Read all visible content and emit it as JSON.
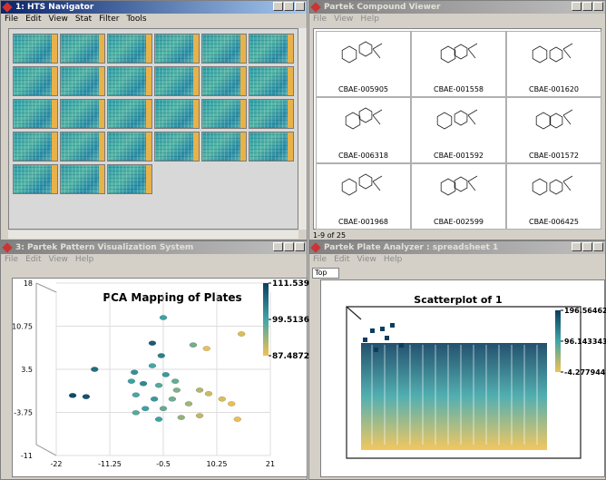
{
  "windows": [
    {
      "title": "1: HTS Navigator",
      "menu": [
        "File",
        "Edit",
        "View",
        "Stat",
        "Filter",
        "Tools"
      ]
    },
    {
      "title": "Partek Compound Viewer",
      "menu": [
        "File",
        "View",
        "Help"
      ],
      "compounds": [
        "CBAE-005905",
        "CBAE-001558",
        "CBAE-001620",
        "CBAE-006318",
        "CBAE-001592",
        "CBAE-001572",
        "CBAE-001968",
        "CBAE-002599",
        "CBAE-006425"
      ],
      "status": "1-9 of 25"
    },
    {
      "title": "3: Partek Pattern Visualization System",
      "menu": [
        "File",
        "Edit",
        "View",
        "Help"
      ]
    },
    {
      "title": "Partek Plate Analyzer : spreadsheet 1",
      "menu": [
        "File",
        "Edit",
        "View",
        "Help"
      ],
      "view": "Top"
    }
  ],
  "chart_data": [
    {
      "type": "scatter",
      "title": "PCA Mapping of Plates",
      "x": [
        -0.5,
        15.2,
        -2.7,
        5.5,
        8.2,
        -0.9,
        -14.3,
        -6.3,
        -2.7,
        0.0,
        1.9,
        -6.9,
        -4.5,
        -1.4,
        2.2,
        6.8,
        -6.0,
        -2.3,
        1.3,
        8.6,
        11.3,
        -18.7,
        -16.0,
        -4.1,
        -0.5,
        -6.0,
        -1.4,
        3.1,
        6.8,
        13.2,
        14.4,
        4.6
      ],
      "y": [
        12.2,
        9.45,
        7.9,
        7.6,
        7.0,
        5.8,
        3.5,
        3.0,
        4.1,
        2.6,
        1.5,
        1.5,
        1.1,
        0.8,
        0.0,
        0.0,
        -0.8,
        -1.5,
        -1.5,
        -0.6,
        -1.5,
        -0.9,
        -1.1,
        -3.1,
        -3.1,
        -3.8,
        -4.9,
        -4.6,
        -4.3,
        -2.3,
        -4.9,
        -2.3
      ],
      "values": [
        100,
        89,
        108,
        96,
        88,
        104,
        106,
        102,
        99,
        101,
        97,
        100,
        103,
        98,
        95,
        92,
        99,
        101,
        96,
        90,
        89,
        110,
        109,
        100,
        97,
        98,
        100,
        94,
        91,
        88,
        88,
        93
      ],
      "xlim": [
        -22,
        21
      ],
      "xticks": [
        -22,
        -11.25,
        -0.5,
        10.25,
        21
      ],
      "ylim": [
        -11,
        18
      ],
      "yticks": [
        18,
        10.75,
        3.5,
        -3.75,
        -11
      ],
      "clim": [
        87.4872,
        111.539
      ],
      "cticks": [
        111.539,
        99.5136,
        87.4872
      ],
      "colors": [
        "#f2c14e",
        "#3fa6a8",
        "#0b3d5e"
      ],
      "grid": true
    },
    {
      "type": "scatter",
      "title": "Scatterplot of 1",
      "clim": [
        -4.277944,
        196.56462
      ],
      "cticks": [
        196.56462,
        96.143343,
        -4.277944
      ],
      "colors": [
        "#f2c14e",
        "#3fa6a8",
        "#0b3d5e"
      ]
    }
  ]
}
